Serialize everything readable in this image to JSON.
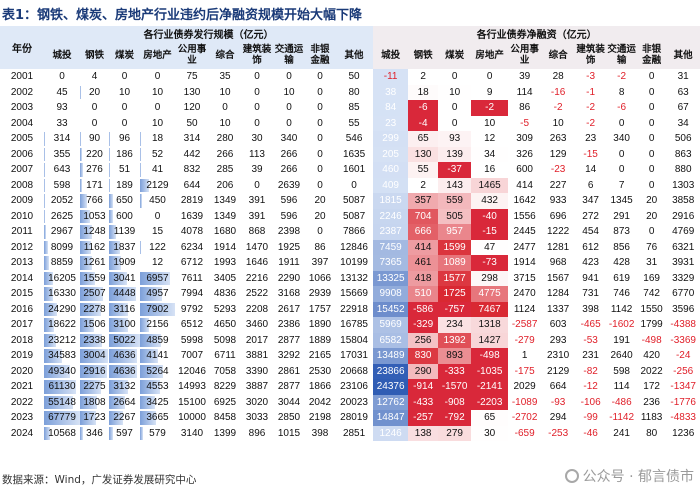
{
  "title": "表1：钢铁、煤炭、房地产行业违约后净融资规模开始大幅下降",
  "source": "数据来源：Wind，广发证券发展研究中心",
  "watermark": "公众号 · 郁言债市",
  "colors": {
    "header_left": "#dfe9f7",
    "header_right": "#f1ecef",
    "neg_text": "#e0202a",
    "bar": "#7c9fd9"
  },
  "header": {
    "year": "年份",
    "issuance_group": "各行业债券发行规模（亿元）",
    "netfin_group": "各行业债券净融资（亿元）",
    "issuance_cols": [
      "城投",
      "钢铁",
      "煤炭",
      "房地产",
      "公用事业",
      "综合",
      "建筑装饰",
      "交通运输",
      "非银金融",
      "其他"
    ],
    "netfin_cols": [
      "城投",
      "钢铁",
      "煤炭",
      "房地产",
      "公用事业",
      "综合",
      "建筑装饰",
      "交通运输",
      "非银金融",
      "其他"
    ]
  },
  "rows": [
    {
      "year": "2001",
      "issuance": [
        0,
        4,
        0,
        0,
        75,
        35,
        0,
        0,
        0,
        50
      ],
      "netfin": [
        -11,
        2,
        0,
        0,
        39,
        28,
        -3,
        -2,
        0,
        31
      ]
    },
    {
      "year": "2002",
      "issuance": [
        45,
        20,
        10,
        10,
        130,
        10,
        0,
        10,
        0,
        80
      ],
      "netfin": [
        38,
        18,
        10,
        9,
        114,
        -16,
        -1,
        8,
        0,
        63
      ]
    },
    {
      "year": "2003",
      "issuance": [
        93,
        0,
        0,
        0,
        120,
        0,
        0,
        0,
        0,
        85
      ],
      "netfin": [
        84,
        -6,
        0,
        -2,
        86,
        -2,
        -2,
        -6,
        0,
        67
      ]
    },
    {
      "year": "2004",
      "issuance": [
        33,
        0,
        0,
        10,
        50,
        10,
        0,
        0,
        0,
        55
      ],
      "netfin": [
        23,
        -4,
        0,
        10,
        -5,
        10,
        -2,
        0,
        0,
        34
      ]
    },
    {
      "year": "2005",
      "issuance": [
        314,
        90,
        96,
        18,
        314,
        280,
        30,
        340,
        0,
        546
      ],
      "netfin": [
        299,
        65,
        93,
        12,
        309,
        263,
        23,
        340,
        0,
        506
      ]
    },
    {
      "year": "2006",
      "issuance": [
        355,
        220,
        186,
        52,
        442,
        266,
        113,
        266,
        0,
        1635
      ],
      "netfin": [
        205,
        130,
        139,
        34,
        326,
        129,
        -15,
        0,
        0,
        863
      ]
    },
    {
      "year": "2007",
      "issuance": [
        643,
        276,
        51,
        41,
        832,
        285,
        39,
        266,
        0,
        1601
      ],
      "netfin": [
        460,
        55,
        -37,
        16,
        600,
        -23,
        14,
        0,
        0,
        880
      ]
    },
    {
      "year": "2008",
      "issuance": [
        598,
        171,
        189,
        2129,
        644,
        206,
        0,
        2639,
        0,
        0
      ],
      "netfin": [
        409,
        2,
        143,
        1465,
        414,
        227,
        6,
        7,
        0,
        1303
      ]
    },
    {
      "year": "2009",
      "issuance": [
        2052,
        766,
        650,
        450,
        2819,
        1349,
        391,
        596,
        20,
        5087
      ],
      "netfin": [
        1815,
        357,
        559,
        432,
        1642,
        933,
        347,
        1345,
        20,
        3858
      ]
    },
    {
      "year": "2010",
      "issuance": [
        2625,
        1053,
        600,
        0,
        1639,
        1349,
        391,
        596,
        20,
        5087
      ],
      "netfin": [
        2246,
        704,
        505,
        -40,
        1556,
        696,
        272,
        291,
        20,
        2916
      ]
    },
    {
      "year": "2011",
      "issuance": [
        2967,
        1248,
        1139,
        15,
        4078,
        1680,
        868,
        2398,
        0,
        7866
      ],
      "netfin": [
        2387,
        666,
        957,
        -15,
        2445,
        1222,
        454,
        873,
        0,
        4769
      ]
    },
    {
      "year": "2012",
      "issuance": [
        8099,
        1162,
        1837,
        122,
        6234,
        1914,
        1470,
        1925,
        86,
        12846
      ],
      "netfin": [
        7459,
        414,
        1599,
        47,
        2477,
        1281,
        612,
        856,
        76,
        6321
      ]
    },
    {
      "year": "2013",
      "issuance": [
        8859,
        1261,
        1909,
        12,
        6712,
        1993,
        1646,
        1911,
        397,
        10199
      ],
      "netfin": [
        7365,
        461,
        1089,
        -73,
        1914,
        968,
        423,
        428,
        31,
        3931
      ]
    },
    {
      "year": "2014",
      "issuance": [
        16205,
        1559,
        3041,
        6957,
        7611,
        3405,
        2216,
        2290,
        1066,
        13132
      ],
      "netfin": [
        13325,
        418,
        1577,
        298,
        3715,
        1567,
        941,
        619,
        169,
        3329
      ]
    },
    {
      "year": "2015",
      "issuance": [
        16330,
        2507,
        4448,
        4957,
        7994,
        4836,
        2522,
        3168,
        2939,
        15669
      ],
      "netfin": [
        9908,
        510,
        1725,
        4775,
        2470,
        1284,
        731,
        746,
        742,
        6770
      ]
    },
    {
      "year": "2016",
      "issuance": [
        24290,
        2278,
        3116,
        7902,
        9792,
        5293,
        2208,
        2617,
        1757,
        22918
      ],
      "netfin": [
        15452,
        -586,
        -757,
        7467,
        1124,
        1337,
        398,
        1142,
        1550,
        3596
      ]
    },
    {
      "year": "2017",
      "issuance": [
        18622,
        1506,
        3100,
        2156,
        6512,
        4650,
        3460,
        2386,
        1890,
        16785
      ],
      "netfin": [
        5969,
        -329,
        234,
        1318,
        -2587,
        603,
        -465,
        -1602,
        1799,
        -4388
      ]
    },
    {
      "year": "2018",
      "issuance": [
        23212,
        2338,
        5022,
        4859,
        5998,
        5098,
        2017,
        2877,
        1889,
        15804
      ],
      "netfin": [
        6582,
        256,
        1392,
        1427,
        -279,
        293,
        -53,
        191,
        -498,
        -3369
      ]
    },
    {
      "year": "2019",
      "issuance": [
        34583,
        3004,
        4636,
        4141,
        7007,
        6711,
        3881,
        3292,
        2165,
        17031
      ],
      "netfin": [
        13489,
        830,
        893,
        -498,
        1,
        2310,
        231,
        2640,
        420,
        -24
      ]
    },
    {
      "year": "2020",
      "issuance": [
        49340,
        2916,
        4636,
        5264,
        12046,
        7058,
        3390,
        2861,
        2530,
        20668
      ],
      "netfin": [
        23866,
        290,
        -333,
        -1035,
        -175,
        2129,
        -82,
        598,
        2022,
        -256
      ]
    },
    {
      "year": "2021",
      "issuance": [
        61130,
        2275,
        3132,
        4553,
        14993,
        8229,
        3887,
        2877,
        1866,
        23106
      ],
      "netfin": [
        24376,
        -914,
        -1570,
        -2141,
        2029,
        664,
        -12,
        114,
        172,
        -1347
      ]
    },
    {
      "year": "2022",
      "issuance": [
        55148,
        1808,
        2664,
        3425,
        15100,
        6925,
        3020,
        3044,
        2042,
        20023
      ],
      "netfin": [
        12762,
        -433,
        -908,
        -2203,
        -1089,
        -93,
        -106,
        -486,
        236,
        -1776
      ]
    },
    {
      "year": "2023",
      "issuance": [
        67779,
        1723,
        2267,
        3665,
        10000,
        8458,
        3033,
        2850,
        2198,
        28019
      ],
      "netfin": [
        14847,
        -257,
        -792,
        65,
        -2702,
        294,
        -99,
        -1142,
        1183,
        -4833
      ]
    },
    {
      "year": "2024",
      "issuance": [
        10568,
        346,
        597,
        579,
        3140,
        1399,
        896,
        1015,
        398,
        2851
      ],
      "netfin": [
        1246,
        138,
        279,
        30,
        -659,
        -253,
        -46,
        241,
        80,
        1236
      ]
    }
  ]
}
